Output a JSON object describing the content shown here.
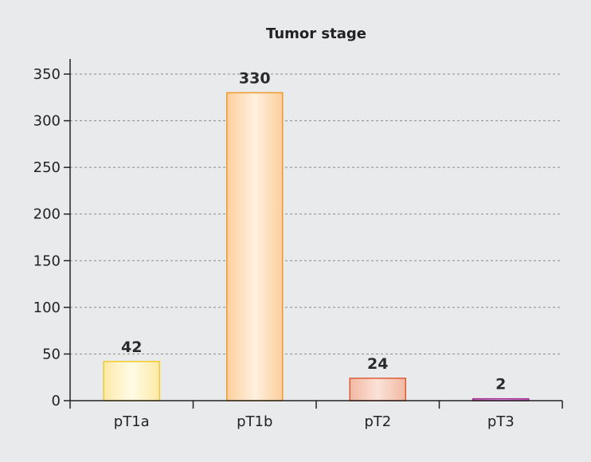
{
  "chart_data": {
    "type": "bar",
    "title": "Tumor stage",
    "categories": [
      "pT1a",
      "pT1b",
      "pT2",
      "pT3"
    ],
    "values": [
      42,
      330,
      24,
      2
    ],
    "ylim": [
      0,
      350
    ],
    "yticks": [
      0,
      50,
      100,
      150,
      200,
      250,
      300,
      350
    ],
    "xlabel": "",
    "ylabel": "",
    "grid": "horizontal-dashed",
    "legend": "none",
    "bar_colors": [
      {
        "fill_light": "#fffbe6",
        "fill_dark": "#fde9a6",
        "stroke": "#f2cb2a"
      },
      {
        "fill_light": "#fff0df",
        "fill_dark": "#fbcf9c",
        "stroke": "#f0992e"
      },
      {
        "fill_light": "#fbe2d8",
        "fill_dark": "#f2b8a2",
        "stroke": "#dc5a35"
      },
      {
        "fill_light": "#e6bcdf",
        "fill_dark": "#c77bbd",
        "stroke": "#a52b93"
      }
    ]
  }
}
